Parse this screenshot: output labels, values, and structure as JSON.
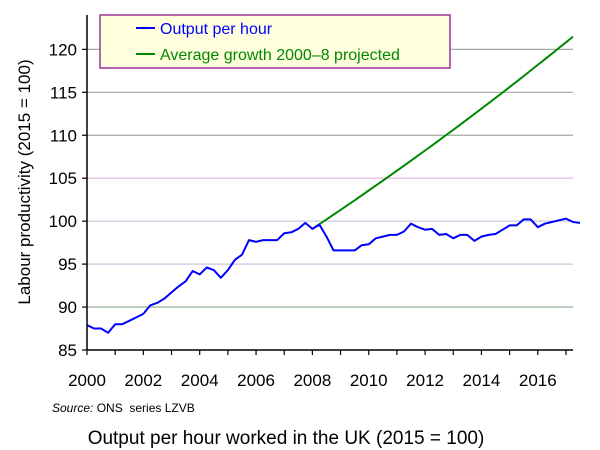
{
  "chart_data": {
    "type": "line",
    "title": "Output per hour worked in the UK (2015 = 100)",
    "xlabel": "",
    "ylabel": "Labour productivity (2015 = 100)",
    "source_label": "Source:",
    "source_text": " ONS  series LZVB",
    "xlim": [
      2000,
      2017.25
    ],
    "ylim": [
      85,
      124
    ],
    "x_ticks": [
      "2000",
      "2002",
      "2004",
      "2006",
      "2008",
      "2010",
      "2012",
      "2014",
      "2016"
    ],
    "y_ticks": [
      "85",
      "90",
      "95",
      "100",
      "105",
      "110",
      "115",
      "120"
    ],
    "grid": true,
    "grid_colors": {
      "85": "#000000",
      "90": "#88aa88",
      "95": "#c8c8e0",
      "100": "#c8c8e0",
      "105": "#e0b0e0",
      "110": "#a0aaa0",
      "115": "#a0aaa0",
      "120": "#a0aaa0"
    },
    "legend": {
      "position": "top-left",
      "background": "#ffffdd",
      "border": "#993399"
    },
    "series": [
      {
        "name": "Output per hour",
        "color": "#0000ff",
        "x_start": 2000.0,
        "x_step": 0.25,
        "values": [
          87.9,
          87.5,
          87.5,
          87.0,
          88.0,
          88.0,
          88.4,
          88.8,
          89.2,
          90.2,
          90.5,
          91.0,
          91.7,
          92.4,
          93.0,
          94.2,
          93.8,
          94.6,
          94.3,
          93.4,
          94.3,
          95.5,
          96.1,
          97.8,
          97.6,
          97.8,
          97.8,
          97.8,
          98.6,
          98.7,
          99.1,
          99.8,
          99.1,
          99.6,
          98.2,
          96.6,
          96.6,
          96.6,
          96.6,
          97.2,
          97.3,
          98.0,
          98.2,
          98.4,
          98.4,
          98.8,
          99.7,
          99.3,
          99.0,
          99.1,
          98.4,
          98.5,
          98.0,
          98.4,
          98.4,
          97.7,
          98.2,
          98.4,
          98.5,
          99.0,
          99.5,
          99.5,
          100.2,
          100.2,
          99.3,
          99.7,
          99.9,
          100.1,
          100.3,
          99.9,
          99.8
        ]
      },
      {
        "name": "Average growth 2000–8 projected",
        "color": "#008800",
        "x_start": 2008.0,
        "x_step": 0.25,
        "values": [
          99.1,
          99.65,
          100.2,
          100.75,
          101.31,
          101.87,
          102.43,
          103.0,
          103.57,
          104.14,
          104.71,
          105.29,
          105.87,
          106.45,
          107.04,
          107.63,
          108.23,
          108.82,
          109.42,
          110.03,
          110.63,
          111.24,
          111.86,
          112.47,
          113.09,
          113.72,
          114.35,
          114.98,
          115.61,
          116.25,
          116.89,
          117.54,
          118.19,
          118.84,
          119.5,
          120.16,
          120.82,
          121.49
        ]
      }
    ]
  }
}
